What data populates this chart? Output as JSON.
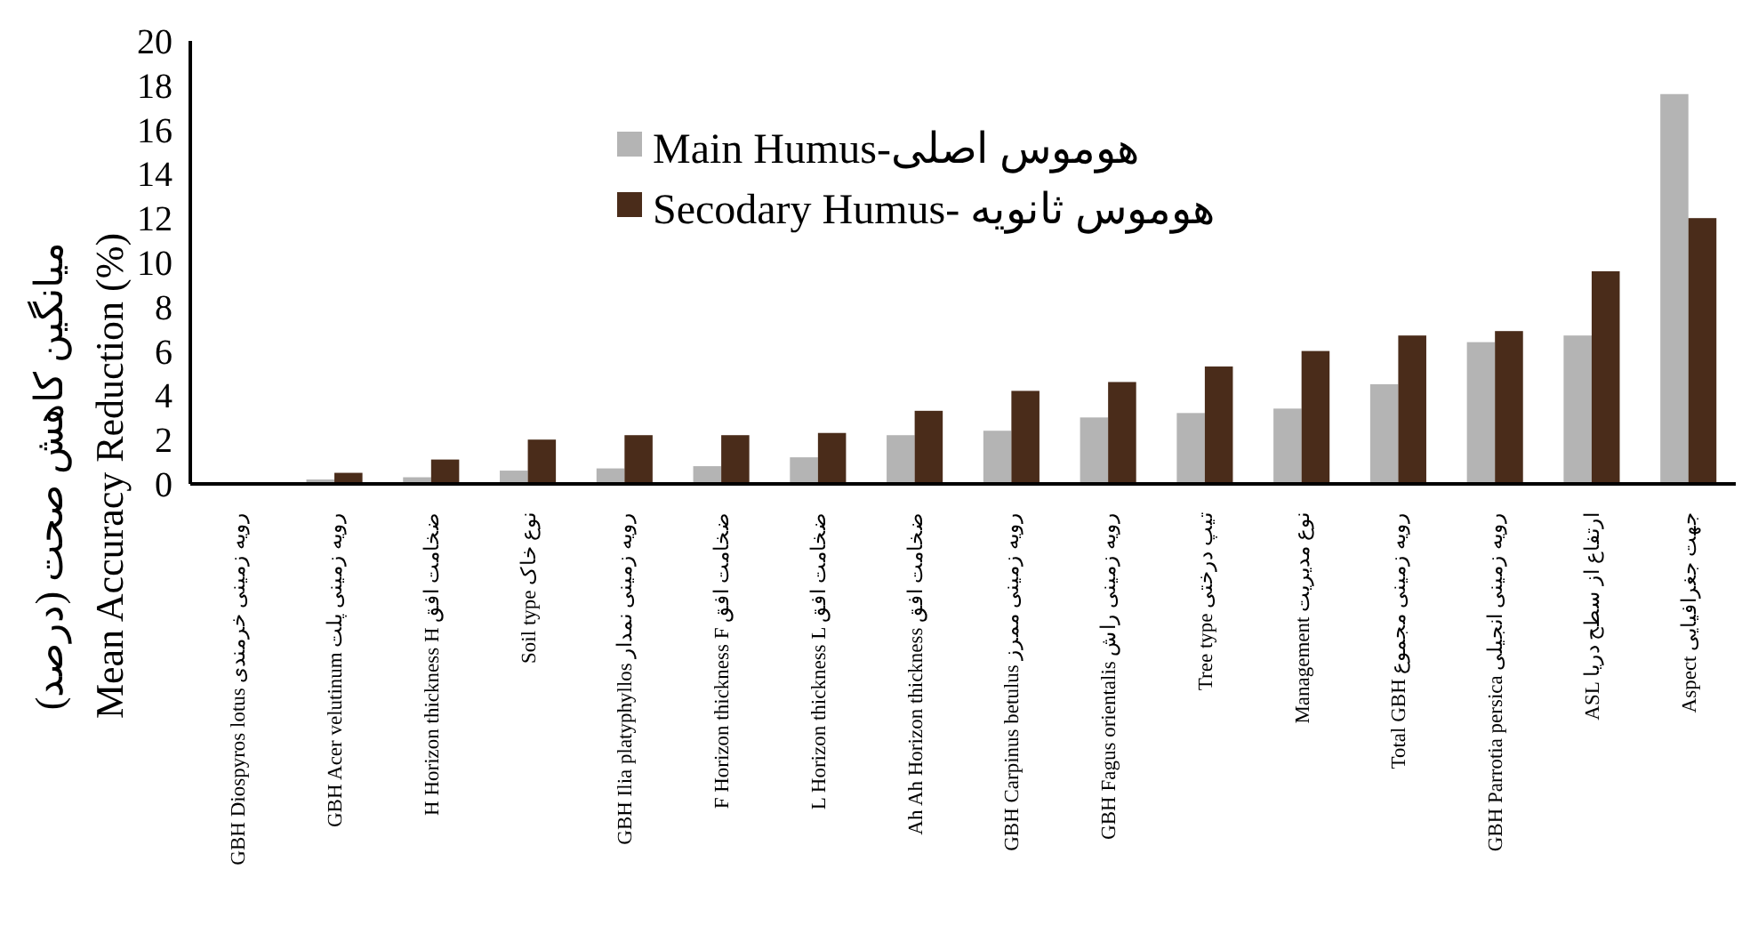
{
  "chart_data": {
    "type": "bar",
    "ylabel": "میانگین کاهش صحت (درصد)\nMean Accuracy Reduction (%)",
    "categories": [
      "GBH Diospyros lotus رویه زمینی خرمندی",
      "GBH Acer velutinum رویه زمینی پلت",
      "H Horizon thickness H ضخامت افق",
      "Soil type نوع خاک",
      "GBH Ilia platyphyllos رویه زمینی نمدار",
      "F Horizon thickness F ضخامت افق",
      "L Horizon thickness L ضخامت افق",
      "Ah Ah Horizon thickness ضخامت افق",
      "GBH Carpinus betulus رویه زمینی ممرز",
      "GBH Fagus orientalis رویه زمینی راش",
      "Tree type تیپ درختی",
      "Management نوع مدیریت",
      "Total GBH رویه زمینی مجموع",
      "GBH Parrotia persica رویه زمینی انجیلی",
      "ASL ارتفاع از سطح دریا",
      "Aspect جهت جغرافیایی"
    ],
    "series": [
      {
        "name": "Main Humus-هوموس اصلی",
        "color": "#b4b4b4",
        "values": [
          0,
          0.2,
          0.3,
          0.6,
          0.7,
          0.8,
          1.2,
          2.2,
          2.4,
          3.0,
          3.2,
          3.4,
          4.5,
          6.4,
          6.7,
          17.6
        ]
      },
      {
        "name": "Secodary Humus- هوموس ثانویه",
        "color": "#4a2c1a",
        "values": [
          0,
          0.5,
          1.1,
          2.0,
          2.2,
          2.2,
          2.3,
          3.3,
          4.2,
          4.6,
          5.3,
          6.0,
          6.7,
          6.9,
          9.6,
          12.0
        ]
      }
    ],
    "ylim": [
      0,
      20
    ],
    "yticks": [
      0,
      2,
      4,
      6,
      8,
      10,
      12,
      14,
      16,
      18,
      20
    ],
    "legend": "top",
    "grid": false
  }
}
